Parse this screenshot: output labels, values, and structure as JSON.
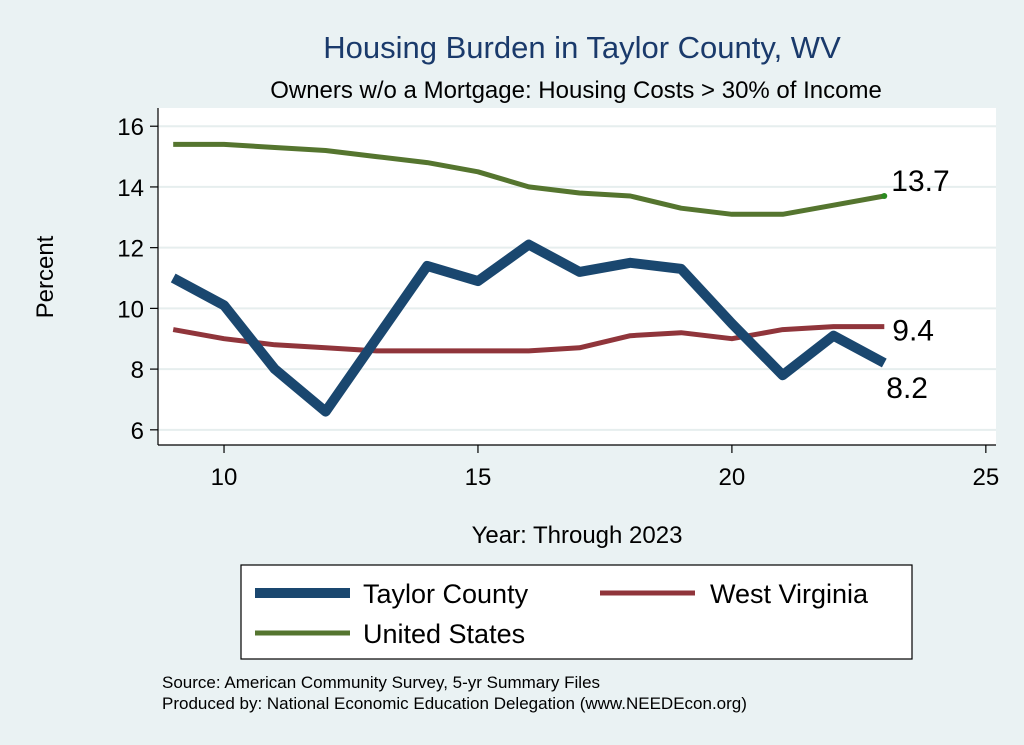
{
  "chart_data": {
    "type": "line",
    "title": "Housing Burden in Taylor County, WV",
    "subtitle": "Owners w/o a Mortgage: Housing Costs > 30% of Income",
    "xlabel": "Year: Through 2023",
    "ylabel": "Percent",
    "xlim": [
      8.7,
      25.2
    ],
    "ylim": [
      5.5,
      16.6
    ],
    "xticks": [
      10,
      15,
      20,
      25
    ],
    "yticks": [
      6,
      8,
      10,
      12,
      14,
      16
    ],
    "grid": true,
    "x": [
      9,
      10,
      11,
      12,
      13,
      14,
      15,
      16,
      17,
      18,
      19,
      20,
      21,
      22,
      23
    ],
    "series": [
      {
        "name": "Taylor County",
        "color": "#1a476f",
        "values": [
          11.0,
          10.1,
          8.0,
          6.6,
          9.0,
          11.4,
          10.9,
          12.1,
          11.2,
          11.5,
          11.3,
          9.5,
          7.8,
          9.1,
          8.2
        ],
        "end_label": "8.2"
      },
      {
        "name": "West Virginia",
        "color": "#90353b",
        "values": [
          9.3,
          9.0,
          8.8,
          8.7,
          8.6,
          8.6,
          8.6,
          8.6,
          8.7,
          9.1,
          9.2,
          9.0,
          9.3,
          9.4,
          9.4
        ],
        "end_label": "9.4"
      },
      {
        "name": "United States",
        "color": "#55752f",
        "values": [
          15.4,
          15.4,
          15.3,
          15.2,
          15.0,
          14.8,
          14.5,
          14.0,
          13.8,
          13.7,
          13.3,
          13.1,
          13.1,
          13.4,
          13.7
        ],
        "end_label": "13.7"
      }
    ],
    "legend": {
      "position": "bottom",
      "entries": [
        "Taylor County",
        "West Virginia",
        "United States"
      ]
    },
    "notes": [
      "Source: American Community Survey, 5-yr Summary Files",
      "Produced by: National Economic Education Delegation (www.NEEDEcon.org)"
    ]
  }
}
